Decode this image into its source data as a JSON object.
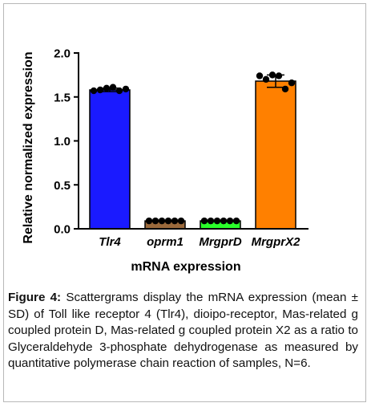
{
  "chart_data": {
    "type": "bar",
    "categories": [
      "Tlr4",
      "oprm1",
      "MrgprD",
      "MrgprX2"
    ],
    "values": [
      1.58,
      0.09,
      0.09,
      1.68
    ],
    "error": [
      0.02,
      0.0,
      0.0,
      0.07
    ],
    "points": [
      [
        1.57,
        1.58,
        1.6,
        1.61,
        1.57,
        1.59
      ],
      [
        0.09,
        0.09,
        0.09,
        0.09,
        0.09,
        0.09
      ],
      [
        0.09,
        0.09,
        0.09,
        0.09,
        0.09,
        0.09
      ],
      [
        1.74,
        1.7,
        1.75,
        1.74,
        1.59,
        1.66
      ]
    ],
    "colors": [
      "#1a1aff",
      "#9b6a3c",
      "#2bff2b",
      "#ff8000"
    ],
    "ylabel": "Relative normalized expression",
    "xlabel": "mRNA expression",
    "ylim": [
      0,
      2.0
    ],
    "yticks": [
      "0.0",
      "0.5",
      "1.0",
      "1.5",
      "2.0"
    ],
    "ytick_values": [
      0,
      0.5,
      1.0,
      1.5,
      2.0
    ]
  },
  "caption": {
    "label": "Figure 4:",
    "text": "Scattergrams display the mRNA expression (mean ± SD) of Toll like receptor 4 (Tlr4), dioipo-receptor, Mas-related g coupled protein D, Mas-related g coupled protein X2 as a ratio to Glyceraldehyde 3-phosphate dehydrogenase as measured by quantitative polymerase chain reaction of samples, N=6."
  }
}
